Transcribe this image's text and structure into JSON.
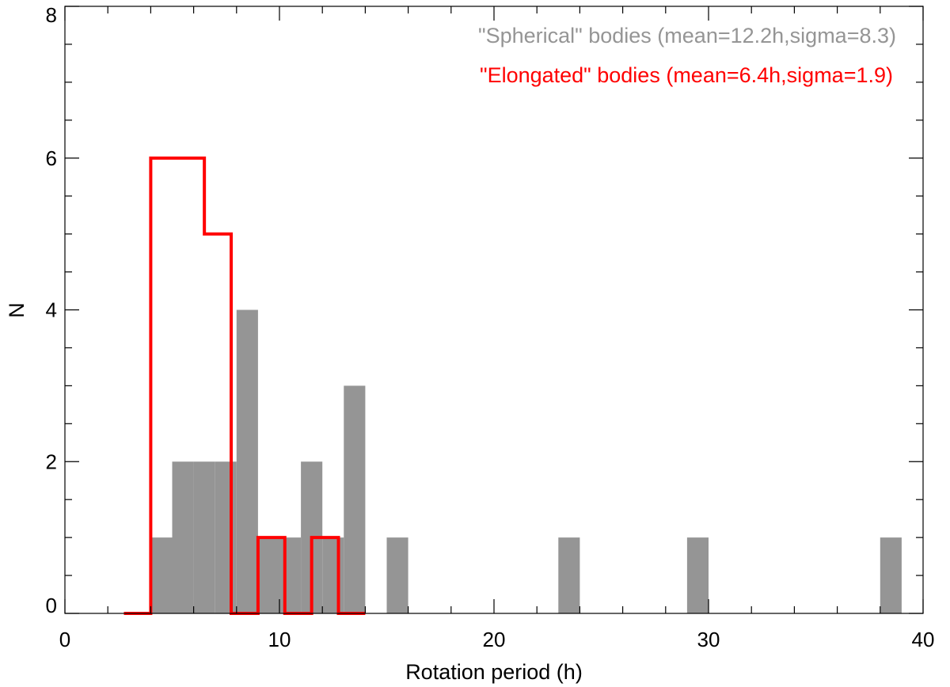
{
  "chart_data": {
    "type": "bar",
    "xlabel": "Rotation period (h)",
    "ylabel": "N",
    "xlim": [
      0,
      40
    ],
    "ylim": [
      0,
      8
    ],
    "x_ticks": [
      0,
      10,
      20,
      30,
      40
    ],
    "y_ticks": [
      0,
      2,
      4,
      6,
      8
    ],
    "grid": false,
    "legend_position": "top-right",
    "series": [
      {
        "name": "\"Spherical\" bodies (mean=12.2h,sigma=8.3)",
        "style": "filled-histogram",
        "color": "#959595",
        "bin_width": 1,
        "bins": [
          {
            "x0": 4,
            "x1": 5,
            "count": 1
          },
          {
            "x0": 5,
            "x1": 6,
            "count": 2
          },
          {
            "x0": 6,
            "x1": 7,
            "count": 2
          },
          {
            "x0": 7,
            "x1": 8,
            "count": 2
          },
          {
            "x0": 8,
            "x1": 9,
            "count": 4
          },
          {
            "x0": 9,
            "x1": 10,
            "count": 1
          },
          {
            "x0": 10,
            "x1": 11,
            "count": 1
          },
          {
            "x0": 11,
            "x1": 12,
            "count": 2
          },
          {
            "x0": 12,
            "x1": 13,
            "count": 1
          },
          {
            "x0": 13,
            "x1": 14,
            "count": 3
          },
          {
            "x0": 15,
            "x1": 16,
            "count": 1
          },
          {
            "x0": 23,
            "x1": 24,
            "count": 1
          },
          {
            "x0": 29,
            "x1": 30,
            "count": 1
          },
          {
            "x0": 38,
            "x1": 39,
            "count": 1
          }
        ]
      },
      {
        "name": "\"Elongated\" bodies (mean=6.4h,sigma=1.9)",
        "style": "step-outline",
        "color": "#ff0000",
        "bin_width": 1.25,
        "edges": [
          2.75,
          4.0,
          5.25,
          6.5,
          7.75,
          9.0,
          10.25,
          11.5,
          12.75,
          14.0
        ],
        "counts": [
          0,
          6,
          6,
          5,
          0,
          1,
          0,
          1,
          0
        ]
      }
    ]
  }
}
